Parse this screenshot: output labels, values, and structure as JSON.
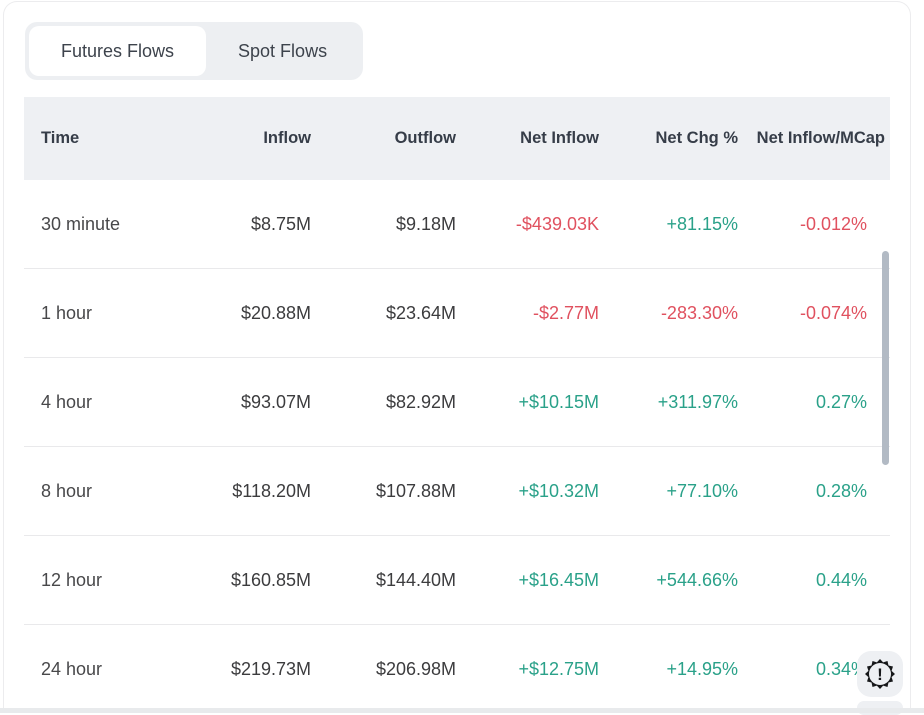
{
  "tabs": {
    "items": [
      {
        "label": "Futures Flows",
        "active": true
      },
      {
        "label": "Spot Flows",
        "active": false
      }
    ]
  },
  "table": {
    "columns": [
      {
        "label": "Time",
        "align": "left"
      },
      {
        "label": "Inflow",
        "align": "right"
      },
      {
        "label": "Outflow",
        "align": "right"
      },
      {
        "label": "Net Inflow",
        "align": "right"
      },
      {
        "label": "Net Chg %",
        "align": "right"
      },
      {
        "label": "Net Inflow/MCap",
        "align": "right"
      }
    ],
    "rows": [
      {
        "cells": [
          {
            "text": "30 minute",
            "tone": "default"
          },
          {
            "text": "$8.75M",
            "tone": "default"
          },
          {
            "text": "$9.18M",
            "tone": "default"
          },
          {
            "text": "-$439.03K",
            "tone": "negative"
          },
          {
            "text": "+81.15%",
            "tone": "positive"
          },
          {
            "text": "-0.012%",
            "tone": "negative"
          }
        ]
      },
      {
        "cells": [
          {
            "text": "1 hour",
            "tone": "default"
          },
          {
            "text": "$20.88M",
            "tone": "default"
          },
          {
            "text": "$23.64M",
            "tone": "default"
          },
          {
            "text": "-$2.77M",
            "tone": "negative"
          },
          {
            "text": "-283.30%",
            "tone": "negative"
          },
          {
            "text": "-0.074%",
            "tone": "negative"
          }
        ]
      },
      {
        "cells": [
          {
            "text": "4 hour",
            "tone": "default"
          },
          {
            "text": "$93.07M",
            "tone": "default"
          },
          {
            "text": "$82.92M",
            "tone": "default"
          },
          {
            "text": "+$10.15M",
            "tone": "positive"
          },
          {
            "text": "+311.97%",
            "tone": "positive"
          },
          {
            "text": "0.27%",
            "tone": "positive"
          }
        ]
      },
      {
        "cells": [
          {
            "text": "8 hour",
            "tone": "default"
          },
          {
            "text": "$118.20M",
            "tone": "default"
          },
          {
            "text": "$107.88M",
            "tone": "default"
          },
          {
            "text": "+$10.32M",
            "tone": "positive"
          },
          {
            "text": "+77.10%",
            "tone": "positive"
          },
          {
            "text": "0.28%",
            "tone": "positive"
          }
        ]
      },
      {
        "cells": [
          {
            "text": "12 hour",
            "tone": "default"
          },
          {
            "text": "$160.85M",
            "tone": "default"
          },
          {
            "text": "$144.40M",
            "tone": "default"
          },
          {
            "text": "+$16.45M",
            "tone": "positive"
          },
          {
            "text": "+544.66%",
            "tone": "positive"
          },
          {
            "text": "0.44%",
            "tone": "positive"
          }
        ]
      },
      {
        "cells": [
          {
            "text": "24 hour",
            "tone": "default"
          },
          {
            "text": "$219.73M",
            "tone": "default"
          },
          {
            "text": "$206.98M",
            "tone": "default"
          },
          {
            "text": "+$12.75M",
            "tone": "positive"
          },
          {
            "text": "+14.95%",
            "tone": "positive"
          },
          {
            "text": "0.34%",
            "tone": "positive"
          }
        ]
      }
    ]
  },
  "colors": {
    "positive": "#2aa189",
    "negative": "#e0515f"
  },
  "icons": {
    "floating_alert": "seal-exclamation-icon",
    "alert_glyph": "!"
  }
}
